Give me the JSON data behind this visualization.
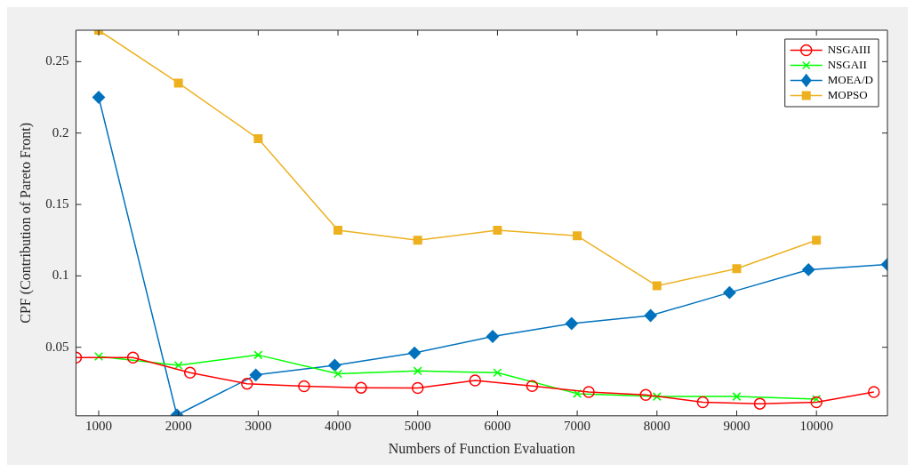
{
  "chart_data": {
    "type": "line",
    "xlabel": "Numbers of Function Evaluation",
    "ylabel": "CPF (Contribution of Pareto Front)",
    "xlim": [
      715,
      10890
    ],
    "ylim": [
      0.002,
      0.272
    ],
    "xticks": [
      1000,
      2000,
      3000,
      4000,
      5000,
      6000,
      7000,
      8000,
      9000,
      10000
    ],
    "yticks": [
      0.05,
      0.1,
      0.15,
      0.2,
      0.25
    ],
    "grid": false,
    "legend": "top right",
    "line_style": "solid",
    "series": [
      {
        "name": "NSGAIII",
        "color": "#ff0000",
        "marker": "circle",
        "x": [
          715,
          1430,
          2145,
          2860,
          3575,
          4290,
          5000,
          5720,
          6435,
          7145,
          7860,
          8575,
          9290,
          10000,
          10720
        ],
        "values": [
          0.0428,
          0.0428,
          0.0322,
          0.0245,
          0.0227,
          0.0217,
          0.0215,
          0.0268,
          0.0229,
          0.0187,
          0.0167,
          0.0115,
          0.0105,
          0.0115,
          0.0187
        ]
      },
      {
        "name": "NSGAII",
        "color": "#00ff00",
        "marker": "cross",
        "x": [
          1000,
          2000,
          3000,
          4000,
          5000,
          6000,
          7000,
          8000,
          9000,
          10000
        ],
        "values": [
          0.0436,
          0.0374,
          0.0446,
          0.0314,
          0.0334,
          0.0322,
          0.0175,
          0.0155,
          0.0155,
          0.0137
        ]
      },
      {
        "name": "MOEA/D",
        "color": "#0072bd",
        "marker": "diamond",
        "x": [
          1000,
          1980,
          2970,
          3960,
          4960,
          5940,
          6930,
          7920,
          8910,
          9900,
          10890
        ],
        "values": [
          0.225,
          0.0025,
          0.0306,
          0.0374,
          0.046,
          0.0576,
          0.0666,
          0.0722,
          0.0883,
          0.1043,
          0.108
        ]
      },
      {
        "name": "MOPSO",
        "color": "#edb120",
        "marker": "square",
        "x": [
          1000,
          2000,
          3000,
          4000,
          5000,
          6000,
          7000,
          8000,
          9000,
          10000
        ],
        "values": [
          0.272,
          0.235,
          0.196,
          0.132,
          0.125,
          0.132,
          0.128,
          0.093,
          0.105,
          0.125
        ]
      }
    ]
  }
}
